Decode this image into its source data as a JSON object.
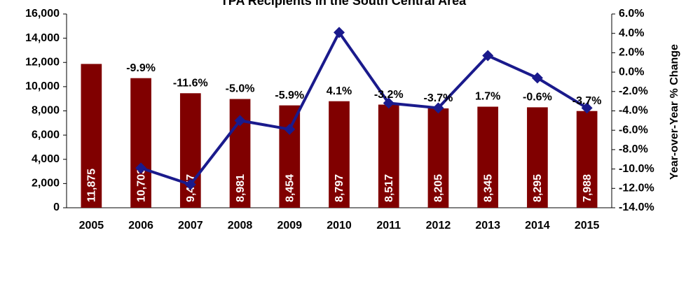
{
  "chart_data": {
    "type": "bar",
    "title": "TPA Recipients in the South Central Area",
    "categories": [
      "2005",
      "2006",
      "2007",
      "2008",
      "2009",
      "2010",
      "2011",
      "2012",
      "2013",
      "2014",
      "2015"
    ],
    "series": [
      {
        "name": "TPA Recipients",
        "type": "bar",
        "color": "#800000",
        "values": [
          11875,
          10703,
          9457,
          8981,
          8454,
          8797,
          8517,
          8205,
          8345,
          8295,
          7988
        ],
        "value_labels": [
          "11,875",
          "10,703",
          "9,457",
          "8,981",
          "8,454",
          "8,797",
          "8,517",
          "8,205",
          "8,345",
          "8,295",
          "7,988"
        ]
      },
      {
        "name": "Year-over-Year % Change",
        "type": "line",
        "axis": "y2",
        "color": "#1a1a8c",
        "values": [
          null,
          -9.9,
          -11.6,
          -5.0,
          -5.9,
          4.1,
          -3.2,
          -3.7,
          1.7,
          -0.6,
          -3.7
        ],
        "value_labels": [
          null,
          "-9.9%",
          "-11.6%",
          "-5.0%",
          "-5.9%",
          "4.1%",
          "-3.2%",
          "-3.7%",
          "1.7%",
          "-0.6%",
          "-3.7%"
        ]
      }
    ],
    "ylim": [
      0,
      16000
    ],
    "yticks": [
      0,
      {
        "value": 2000,
        "label": "2,000"
      },
      {
        "value": 4000,
        "label": "4,000"
      },
      {
        "value": 6000,
        "label": "6,000"
      },
      {
        "value": 8000,
        "label": "8,000"
      },
      {
        "value": 10000,
        "label": "10,000"
      },
      {
        "value": 12000,
        "label": "12,000"
      },
      {
        "value": 14000,
        "label": "14,000"
      },
      {
        "value": 16000,
        "label": "16,000"
      }
    ],
    "y2lim": [
      -14,
      6
    ],
    "y2ticks": [
      {
        "value": -14,
        "label": "-14.0%"
      },
      {
        "value": -12,
        "label": "-12.0%"
      },
      {
        "value": -10,
        "label": "-10.0%"
      },
      {
        "value": -8,
        "label": "-8.0%"
      },
      {
        "value": -6,
        "label": "-6.0%"
      },
      {
        "value": -4,
        "label": "-4.0%"
      },
      {
        "value": -2,
        "label": "-2.0%"
      },
      {
        "value": 0,
        "label": "0.0%"
      },
      {
        "value": 2,
        "label": "2.0%"
      },
      {
        "value": 4,
        "label": "4.0%"
      },
      {
        "value": 6,
        "label": "6.0%"
      }
    ],
    "y2label": "Year-over-Year % Change",
    "grid": false
  }
}
